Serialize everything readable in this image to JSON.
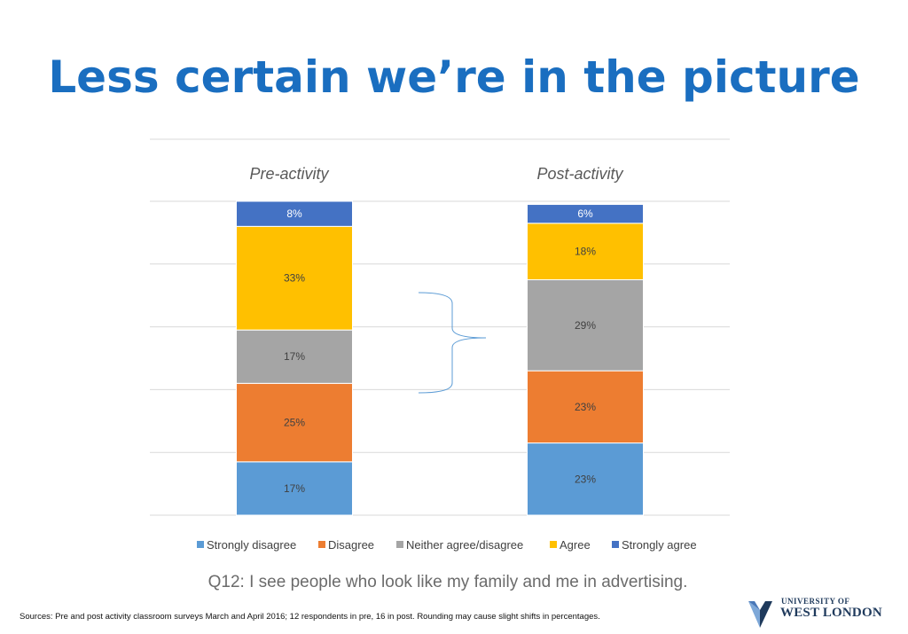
{
  "slide": {
    "title": "Less certain we’re in the picture",
    "question": "Q12: I see people who look like my family and me in advertising.",
    "sources": "Sources: Pre and post activity classroom surveys March and April 2016; 12 respondents in pre, 16 in post. Rounding may cause slight  shifts in percentages.",
    "logo": {
      "line1": "UNIVERSITY OF",
      "line2": "WEST LONDON"
    }
  },
  "chart_data": {
    "type": "bar",
    "stacked": true,
    "categories": [
      "Pre-activity",
      "Post-activity"
    ],
    "series": [
      {
        "name": "Strongly disagree",
        "values": [
          17,
          23
        ],
        "labels": [
          "17%",
          "23%"
        ],
        "color": "#5b9bd5"
      },
      {
        "name": "Disagree",
        "values": [
          25,
          23
        ],
        "labels": [
          "25%",
          "23%"
        ],
        "color": "#ed7d31"
      },
      {
        "name": "Neither agree/disagree",
        "values": [
          17,
          29
        ],
        "labels": [
          "17%",
          "29%"
        ],
        "color": "#a5a5a5"
      },
      {
        "name": "Agree",
        "values": [
          33,
          18
        ],
        "labels": [
          "33%",
          "18%"
        ],
        "color": "#ffc000"
      },
      {
        "name": "Strongly agree",
        "values": [
          8,
          6
        ],
        "labels": [
          "8%",
          "6%"
        ],
        "color": "#4472c4"
      }
    ],
    "ylim": [
      0,
      100
    ],
    "grid": true,
    "legend_position": "bottom",
    "category_label_position": "top"
  }
}
